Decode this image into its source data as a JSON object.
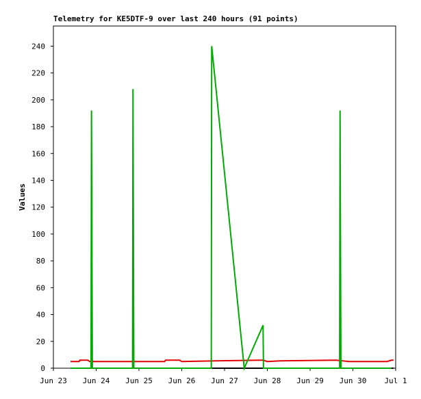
{
  "chart_data": {
    "type": "line",
    "title": "Telemetry for KE5DTF-9 over last 240 hours (91 points)",
    "y_label": "Values",
    "xlim": [
      23,
      31
    ],
    "xticks": [
      {
        "value": 23,
        "label": "Jun 23"
      },
      {
        "value": 24,
        "label": "Jun 24"
      },
      {
        "value": 25,
        "label": "Jun 25"
      },
      {
        "value": 26,
        "label": "Jun 26"
      },
      {
        "value": 27,
        "label": "Jun 27"
      },
      {
        "value": 28,
        "label": "Jun 28"
      },
      {
        "value": 29,
        "label": "Jun 29"
      },
      {
        "value": 30,
        "label": "Jun 30"
      },
      {
        "value": 31,
        "label": "Jul 1"
      }
    ],
    "ylim": [
      0,
      255
    ],
    "yticks": [
      0,
      20,
      40,
      60,
      80,
      100,
      120,
      140,
      160,
      180,
      200,
      220,
      240
    ],
    "grid": false,
    "series": [
      {
        "color": "#000000",
        "x": [
          23.4,
          30.95
        ],
        "values": [
          0,
          0
        ]
      },
      {
        "color": "#e00000",
        "x": [
          23.4,
          23.6,
          23.62,
          23.8,
          23.85,
          25.6,
          25.62,
          25.95,
          26.0,
          26.8,
          27.9,
          28.0,
          28.3,
          29.6,
          29.9,
          30.8,
          30.9,
          30.95
        ],
        "values": [
          5,
          5,
          6,
          6,
          5,
          5,
          6,
          6,
          5,
          5.5,
          6,
          5,
          5.5,
          6,
          5,
          5,
          6,
          6
        ]
      },
      {
        "color": "#00aa00",
        "x": [
          23.4,
          23.88,
          23.89,
          23.9,
          23.91,
          24.85,
          24.86,
          24.87,
          24.88,
          26.69,
          26.7,
          27.46,
          27.9,
          27.91,
          29.69,
          29.7,
          29.71,
          29.72,
          30.9
        ],
        "values": [
          0,
          0,
          192,
          97,
          0,
          0,
          208,
          104,
          0,
          0,
          240,
          0,
          32,
          0,
          0,
          192,
          97,
          0,
          0
        ]
      }
    ]
  }
}
